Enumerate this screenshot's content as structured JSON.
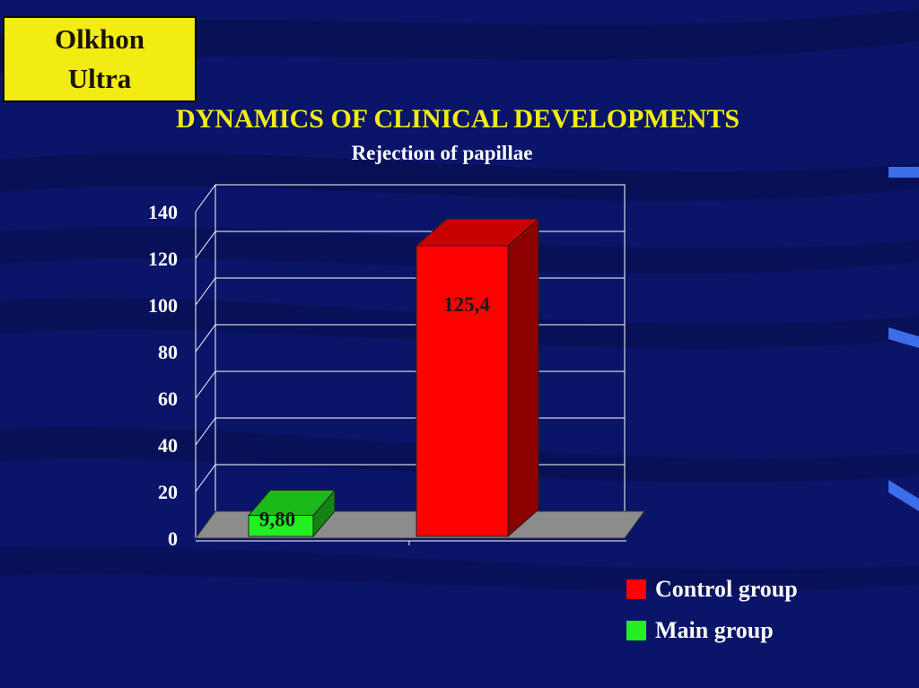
{
  "badge": {
    "line1": "Olkhon",
    "line2": "Ultra"
  },
  "title": "DYNAMICS OF CLINICAL DEVELOPMENTS",
  "subtitle": "Rejection of papillae",
  "colors": {
    "background": "#0a1468",
    "badge": "#f2ec12",
    "title": "#f2ec12",
    "main_group": "#22ee22",
    "control_group": "#ff0000"
  },
  "chart_data": {
    "type": "bar",
    "title": "DYNAMICS OF CLINICAL DEVELOPMENTS",
    "subtitle": "Rejection of papillae",
    "xlabel": "",
    "ylabel": "",
    "ylim": [
      0,
      140
    ],
    "yticks": [
      0,
      20,
      40,
      60,
      80,
      100,
      120,
      140
    ],
    "grid": true,
    "projection": "3d",
    "legend_position": "bottom-right",
    "series": [
      {
        "name": "Main group",
        "value": 9.8,
        "label": "9,80",
        "color": "#22ee22"
      },
      {
        "name": "Control group",
        "value": 125.4,
        "label": "125,4",
        "color": "#ff0000"
      }
    ]
  },
  "legend": [
    {
      "label": "Control group",
      "color": "#ff0000"
    },
    {
      "label": "Main group",
      "color": "#22ee22"
    }
  ]
}
